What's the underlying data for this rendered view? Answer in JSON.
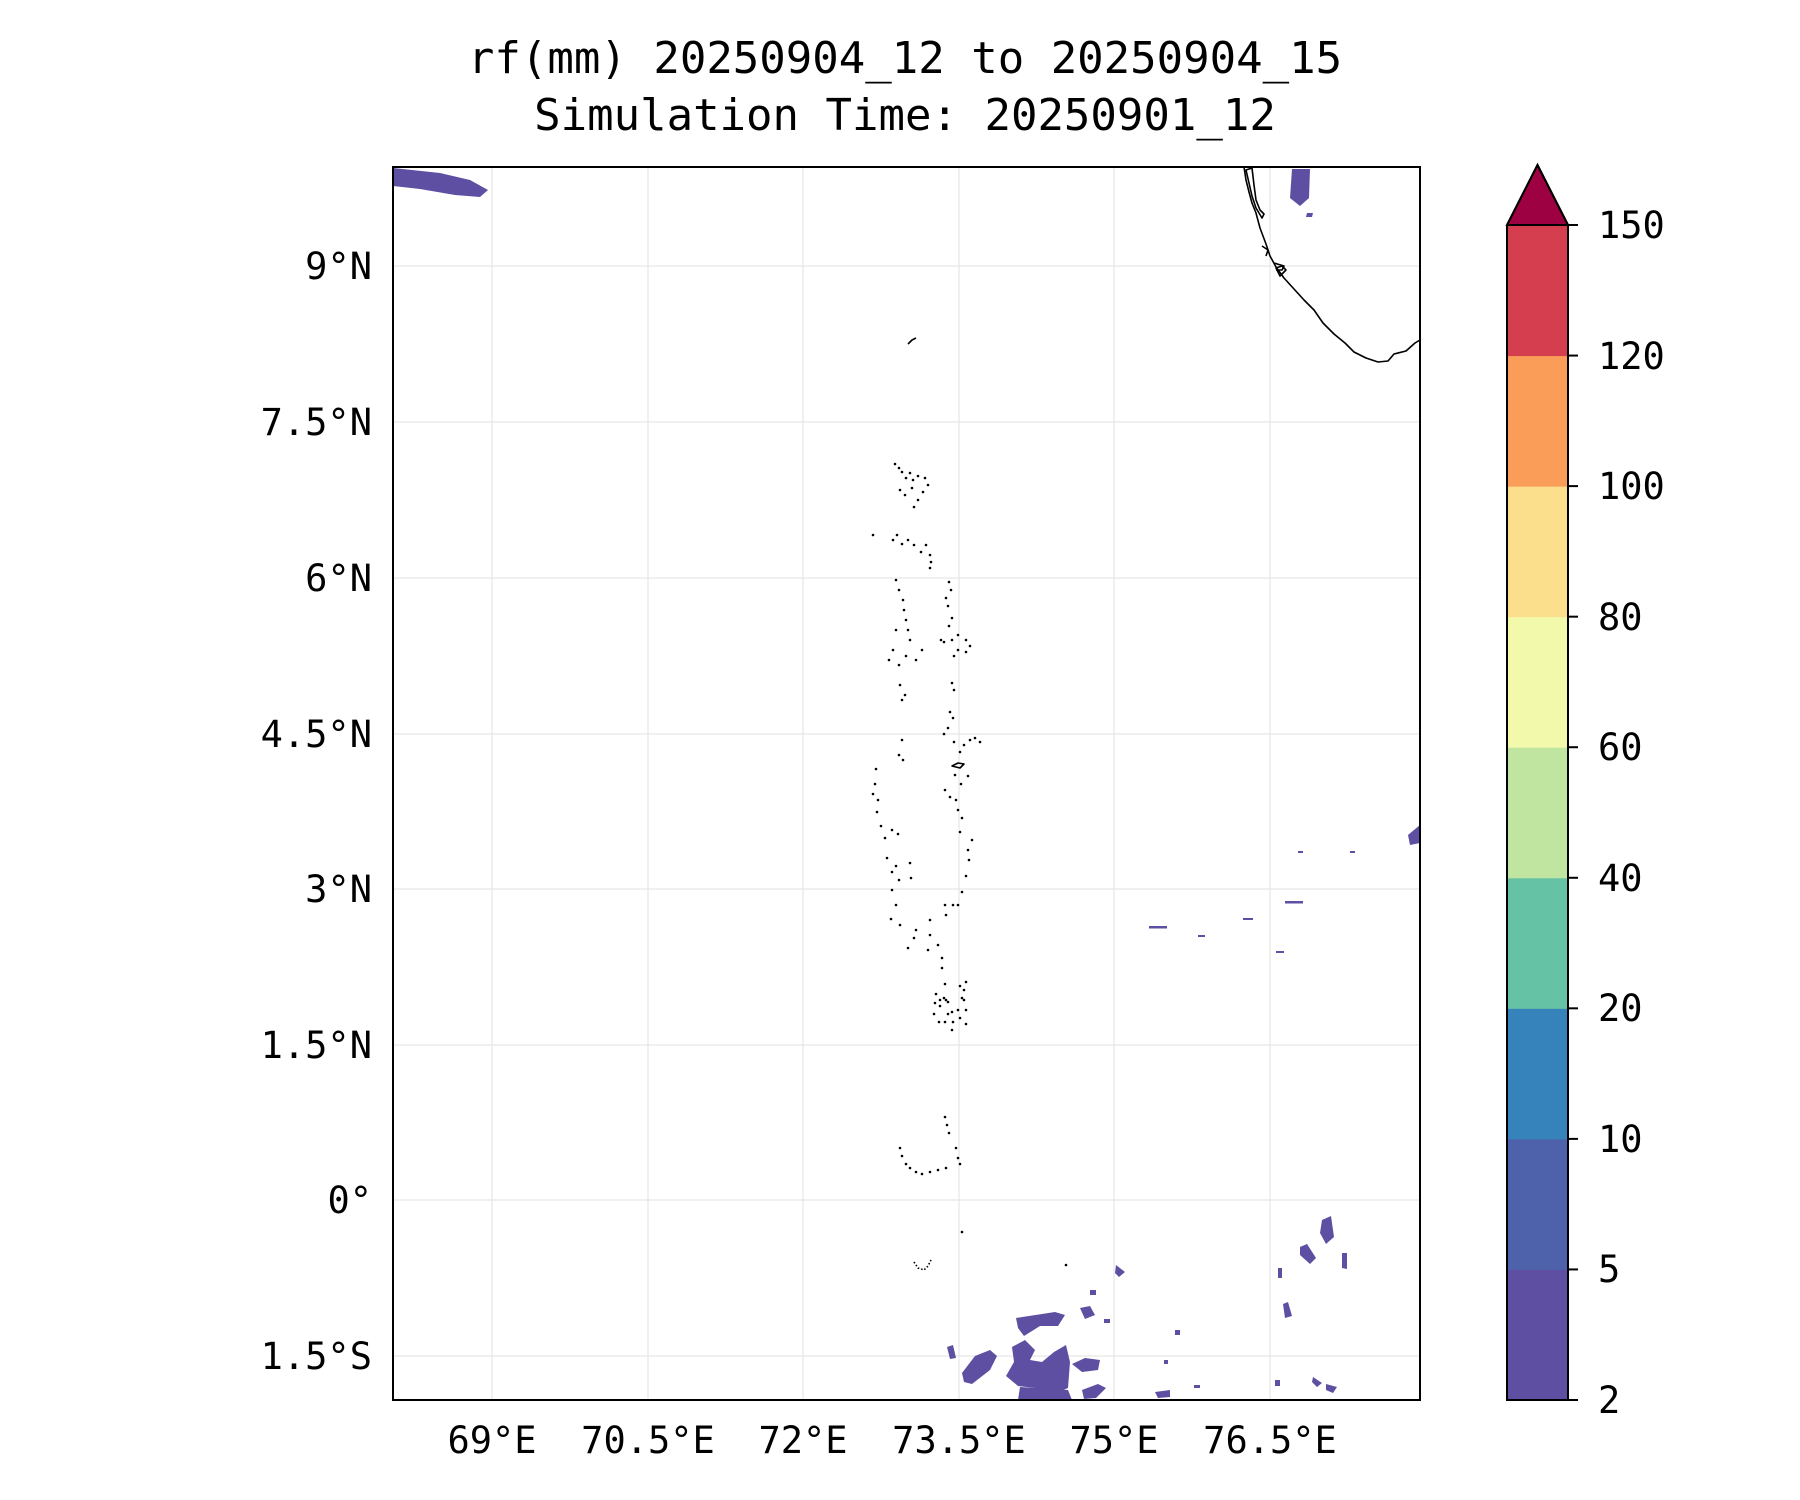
{
  "title": {
    "line1": "rf(mm) 20250904_12 to 20250904_15",
    "line2": "Simulation Time: 20250901_12"
  },
  "map": {
    "lon_ticks": [
      "69°E",
      "70.5°E",
      "72°E",
      "73.5°E",
      "75°E",
      "76.5°E"
    ],
    "lat_ticks": [
      "9°N",
      "7.5°N",
      "6°N",
      "4.5°N",
      "3°N",
      "1.5°N",
      "0°",
      "1.5°S"
    ],
    "extent": {
      "lon": [
        68.05,
        77.95
      ],
      "lat": [
        -1.9,
        9.95
      ]
    },
    "gridlines": true,
    "coastlines": [
      "India (Kerala coast)",
      "Maldives atolls"
    ]
  },
  "colorbar": {
    "levels": [
      "2",
      "5",
      "10",
      "20",
      "40",
      "60",
      "80",
      "100",
      "120",
      "150"
    ],
    "colors": [
      "#5e4fa2",
      "#4e62ab",
      "#3682ba",
      "#66c2a5",
      "#bfe5a0",
      "#f3f9ab",
      "#fbdf8c",
      "#f99d59",
      "#d53e4f",
      "#9e0142"
    ],
    "extend": "max"
  },
  "chart_data": {
    "type": "heatmap",
    "variable": "rf(mm)",
    "period": "20250904_12 to 20250904_15",
    "simulation_time": "20250901_12",
    "colorbar_levels": [
      2,
      5,
      10,
      20,
      40,
      60,
      80,
      100,
      120,
      150
    ],
    "rain_areas": [
      {
        "lon": 68.5,
        "lat": 9.85,
        "level": "2-5"
      },
      {
        "lon": 76.8,
        "lat": 9.8,
        "level": "2-5"
      },
      {
        "lon": 77.9,
        "lat": 3.5,
        "level": "2-5"
      },
      {
        "lon": 75.2,
        "lat": 2.6,
        "level": "2-5"
      },
      {
        "lon": 76.2,
        "lat": 2.8,
        "level": "2-5"
      },
      {
        "lon": 76.8,
        "lat": 2.0,
        "level": "2-5"
      },
      {
        "lon": 76.9,
        "lat": -0.5,
        "level": "2-5"
      },
      {
        "lon": 76.65,
        "lat": -1.0,
        "level": "2-5"
      },
      {
        "lon": 73.7,
        "lat": -1.7,
        "level": "2-5"
      },
      {
        "lon": 74.4,
        "lat": -1.6,
        "level": "2-5"
      },
      {
        "lon": 74.3,
        "lat": -1.2,
        "level": "2-5"
      },
      {
        "lon": 74.8,
        "lat": -1.6,
        "level": "2-5"
      }
    ]
  }
}
